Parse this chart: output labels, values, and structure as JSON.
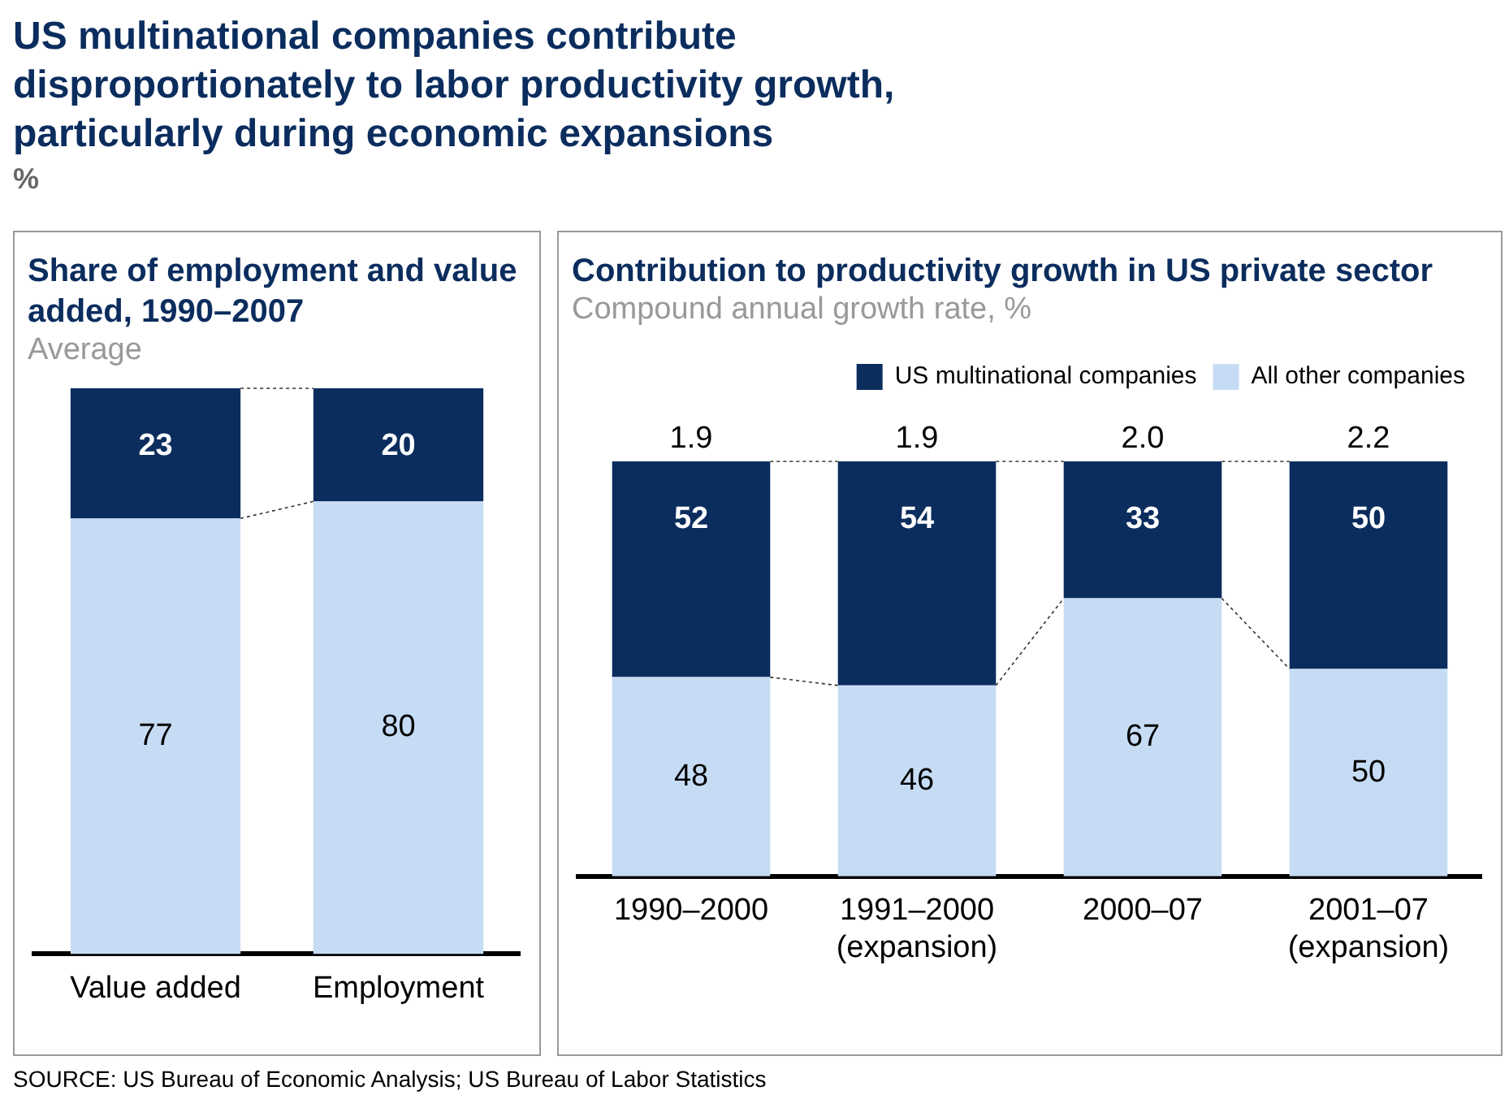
{
  "chart_data": [
    {
      "type": "other",
      "title": "US multinational companies contribute disproportionately to labor productivity growth, particularly during economic expansions",
      "subtitle": "%",
      "annotations": [
        "SOURCE: US Bureau of Economic Analysis; US Bureau of Labor Statistics"
      ]
    },
    {
      "type": "bar",
      "title": "Share of employment and value added, 1990–2007",
      "subtitle": "Average",
      "stacked": true,
      "data_labels": true,
      "categories": [
        "Value added",
        "Employment"
      ],
      "series": [
        {
          "color": "#c6dcf5",
          "values": [
            77,
            80
          ]
        },
        {
          "color": "#0b2d5e",
          "values": [
            23,
            20
          ]
        }
      ]
    },
    {
      "type": "bar",
      "title": "Contribution to productivity growth in US private sector",
      "subtitle": "Compound annual growth rate, %",
      "stacked": true,
      "data_labels": true,
      "legend": "top right",
      "categories": [
        "1990–2000",
        "1991–2000\n(expansion)",
        "2000–07",
        "2001–07\n(expansion)"
      ],
      "series": [
        {
          "name": "All other companies",
          "color": "#c6dcf5",
          "values": [
            48,
            46,
            67,
            50
          ]
        },
        {
          "name": "US multinational companies",
          "color": "#0b2d5e",
          "values": [
            52,
            54,
            33,
            50
          ]
        }
      ],
      "annotations": [
        "1.9",
        "1.9",
        "2.0",
        "2.2"
      ]
    }
  ]
}
